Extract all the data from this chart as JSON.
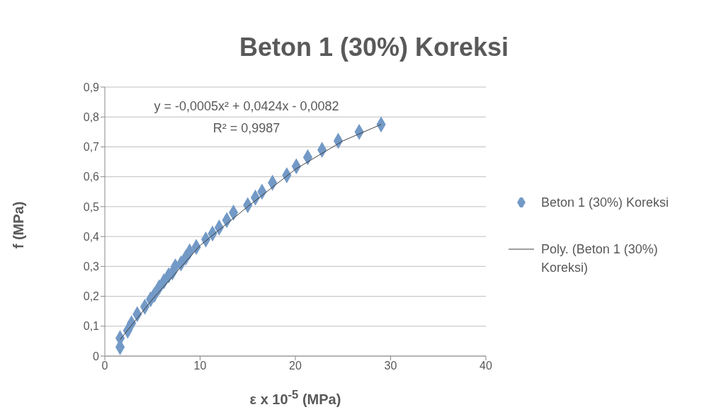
{
  "chart_data": {
    "type": "scatter",
    "title": "Beton 1 (30%) Koreksi",
    "xlabel": "ε x 10$^{-5}$ (MPa)",
    "ylabel": "f (MPa)",
    "annotations": [
      "y = -0,0005x² + 0,0424x - 0,0082",
      "R² = 0,9987"
    ],
    "xlim": [
      0,
      40
    ],
    "xticks": [
      0,
      10,
      20,
      30,
      40
    ],
    "ylim": [
      0,
      0.9
    ],
    "yticks": [
      0,
      {
        "value": 0.1,
        "label": "0,1"
      },
      {
        "value": 0.2,
        "label": "0,2"
      },
      {
        "value": 0.3,
        "label": "0,3"
      },
      {
        "value": 0.4,
        "label": "0,4"
      },
      {
        "value": 0.5,
        "label": "0,5"
      },
      {
        "value": 0.6,
        "label": "0,6"
      },
      {
        "value": 0.7,
        "label": "0,7"
      },
      {
        "value": 0.8,
        "label": "0,8"
      },
      {
        "value": 0.9,
        "label": "0,9"
      }
    ],
    "grid": "y",
    "legend": "right",
    "marker": "diamond",
    "series": [
      {
        "name": "Beton 1 (30%) Koreksi",
        "type": "scatter",
        "color": "#7399c6",
        "x": [
          1.6,
          1.6,
          2.4,
          2.8,
          3.4,
          4.2,
          4.8,
          5.2,
          5.7,
          6.2,
          6.7,
          7.1,
          7.4,
          8,
          8.5,
          8.9,
          9.6,
          10.6,
          11.3,
          12,
          12.8,
          13.5,
          15,
          15.8,
          16.5,
          17.6,
          19.1,
          20.1,
          21.3,
          22.8,
          24.5,
          26.7,
          29
        ],
        "values": [
          0.03,
          0.06,
          0.085,
          0.11,
          0.14,
          0.165,
          0.19,
          0.205,
          0.23,
          0.25,
          0.27,
          0.28,
          0.3,
          0.31,
          0.33,
          0.35,
          0.365,
          0.39,
          0.41,
          0.43,
          0.455,
          0.48,
          0.505,
          0.53,
          0.55,
          0.58,
          0.605,
          0.635,
          0.665,
          0.69,
          0.72,
          0.75,
          0.775
        ]
      },
      {
        "name": "Poly. (Beton 1 (30%) Koreksi)",
        "type": "line",
        "marker": "none",
        "color": "#404040",
        "x": [
          1.6,
          5,
          10,
          15,
          20,
          25,
          29
        ],
        "values": [
          0.055,
          0.19,
          0.37,
          0.5,
          0.625,
          0.72,
          0.775
        ]
      }
    ]
  }
}
